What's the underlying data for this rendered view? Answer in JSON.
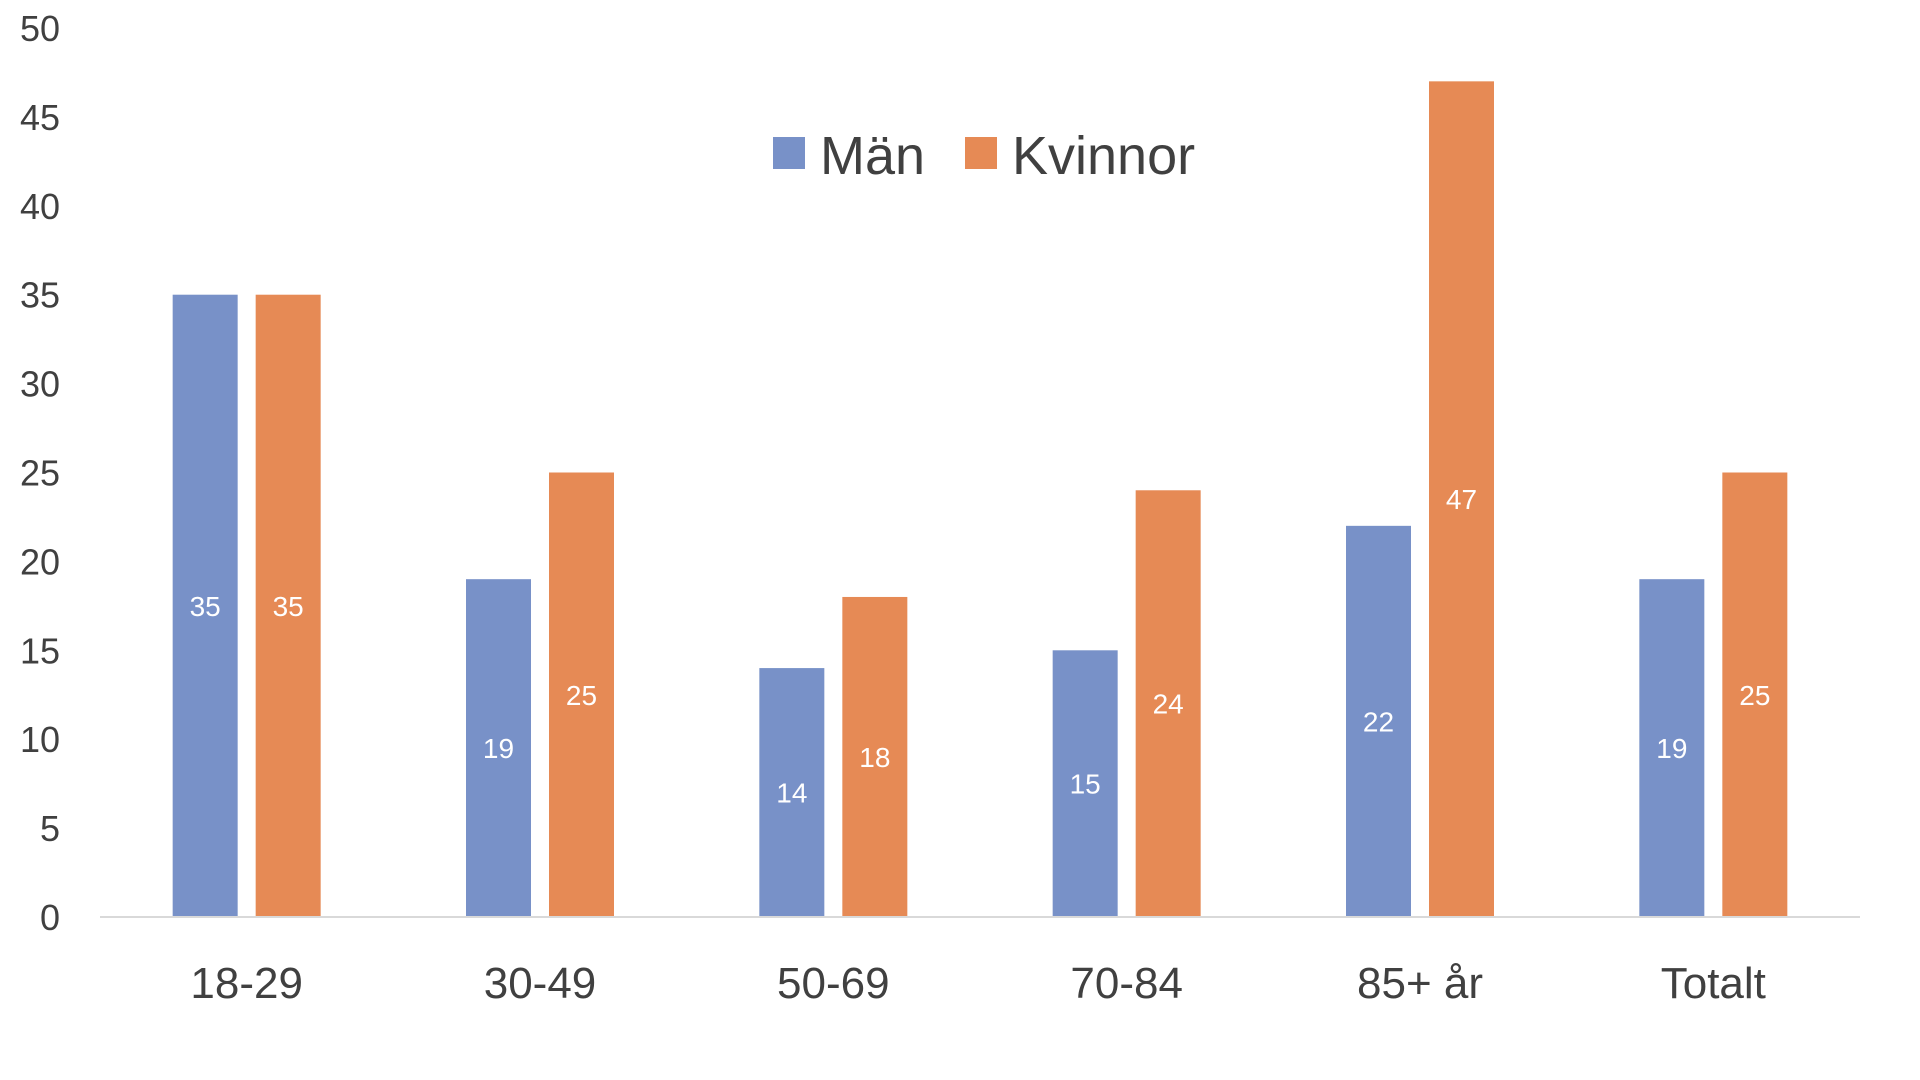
{
  "chart_data": {
    "type": "bar",
    "categories": [
      "18-29",
      "30-49",
      "50-69",
      "70-84",
      "85+ år",
      "Totalt"
    ],
    "series": [
      {
        "name": "Män",
        "values": [
          35,
          19,
          14,
          15,
          22,
          19
        ],
        "color": "#7891C8"
      },
      {
        "name": "Kvinnor",
        "values": [
          35,
          25,
          18,
          24,
          47,
          25
        ],
        "color": "#E68A55"
      }
    ],
    "data_labels": [
      [
        "35",
        "19",
        "14",
        "15",
        "22",
        "19"
      ],
      [
        "35",
        "25",
        "18",
        "24",
        "47",
        "25"
      ]
    ],
    "ylim": [
      0,
      50
    ],
    "yticks": [
      0,
      5,
      10,
      15,
      20,
      25,
      30,
      35,
      40,
      45,
      50
    ],
    "ytick_labels": [
      "0",
      "5",
      "10",
      "15",
      "20",
      "25",
      "30",
      "35",
      "40",
      "45",
      "50"
    ],
    "title": "",
    "xlabel": "",
    "ylabel": "",
    "grid": false,
    "legend": {
      "position": "top-center",
      "entries": [
        "Män",
        "Kvinnor"
      ]
    },
    "axis_color": "#D9D9D9",
    "text_color": "#404040"
  }
}
